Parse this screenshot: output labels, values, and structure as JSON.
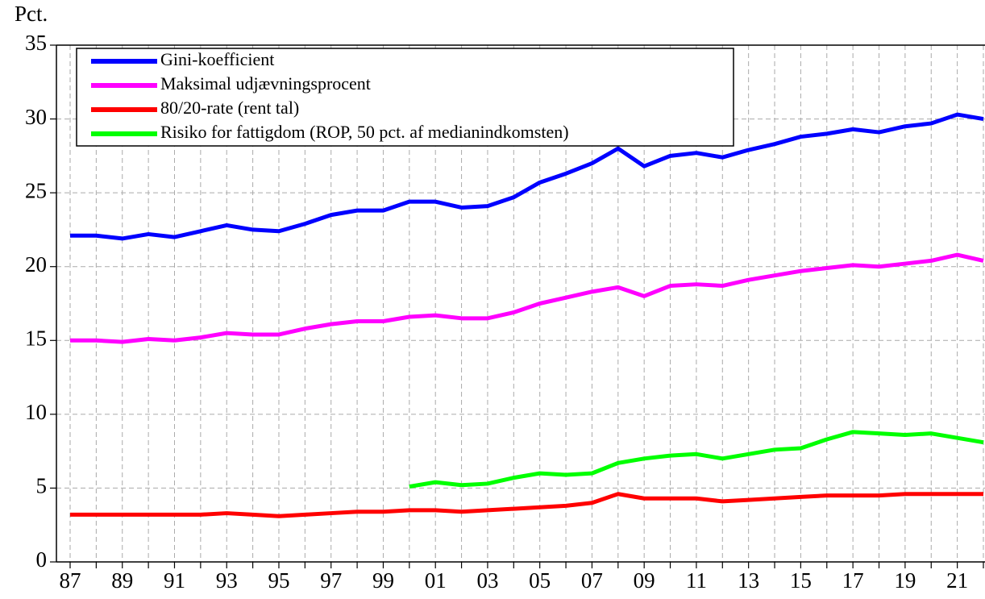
{
  "chart_data": {
    "type": "line",
    "ylabel": "Pct.",
    "categories": [
      "87",
      null,
      "89",
      null,
      "91",
      null,
      "93",
      null,
      "95",
      null,
      "97",
      null,
      "99",
      null,
      "01",
      null,
      "03",
      null,
      "05",
      null,
      "07",
      null,
      "09",
      null,
      "11",
      null,
      "13",
      null,
      "15",
      null,
      "17",
      null,
      "19",
      null,
      "21",
      null
    ],
    "ylim": [
      0,
      35
    ],
    "yticks": [
      0,
      5,
      10,
      15,
      20,
      25,
      30,
      35
    ],
    "grid": true,
    "legend": "upper left",
    "series": [
      {
        "name": "Gini-koefficient",
        "color": "#0000ff",
        "values": [
          22.1,
          22.1,
          21.9,
          22.2,
          22.0,
          22.4,
          22.8,
          22.5,
          22.4,
          22.9,
          23.5,
          23.8,
          23.8,
          24.4,
          24.4,
          24.0,
          24.1,
          24.7,
          25.7,
          26.3,
          27.0,
          28.0,
          26.8,
          27.5,
          27.7,
          27.4,
          27.9,
          28.3,
          28.8,
          29.0,
          29.3,
          29.1,
          29.5,
          29.7,
          30.3,
          30.0
        ]
      },
      {
        "name": "Maksimal udjævningsprocent",
        "color": "#ff00ff",
        "values": [
          15.0,
          15.0,
          14.9,
          15.1,
          15.0,
          15.2,
          15.5,
          15.4,
          15.4,
          15.8,
          16.1,
          16.3,
          16.3,
          16.6,
          16.7,
          16.5,
          16.5,
          16.9,
          17.5,
          17.9,
          18.3,
          18.6,
          18.0,
          18.7,
          18.8,
          18.7,
          19.1,
          19.4,
          19.7,
          19.9,
          20.1,
          20.0,
          20.2,
          20.4,
          20.8,
          20.4
        ]
      },
      {
        "name": "80/20-rate (rent tal)",
        "color": "#ff0000",
        "values": [
          3.2,
          3.2,
          3.2,
          3.2,
          3.2,
          3.2,
          3.3,
          3.2,
          3.1,
          3.2,
          3.3,
          3.4,
          3.4,
          3.5,
          3.5,
          3.4,
          3.5,
          3.6,
          3.7,
          3.8,
          4.0,
          4.6,
          4.3,
          4.3,
          4.3,
          4.1,
          4.2,
          4.3,
          4.4,
          4.5,
          4.5,
          4.5,
          4.6,
          4.6,
          4.6,
          4.6
        ]
      },
      {
        "name": "Risiko for fattigdom (ROP, 50 pct. af medianindkomsten)",
        "color": "#00ff00",
        "values": [
          null,
          null,
          null,
          null,
          null,
          null,
          null,
          null,
          null,
          null,
          null,
          null,
          null,
          5.1,
          5.4,
          5.2,
          5.3,
          5.7,
          6.0,
          5.9,
          6.0,
          6.7,
          7.0,
          7.2,
          7.3,
          7.0,
          7.3,
          7.6,
          7.7,
          8.3,
          8.8,
          8.7,
          8.6,
          8.7,
          8.4,
          8.1
        ]
      }
    ]
  }
}
